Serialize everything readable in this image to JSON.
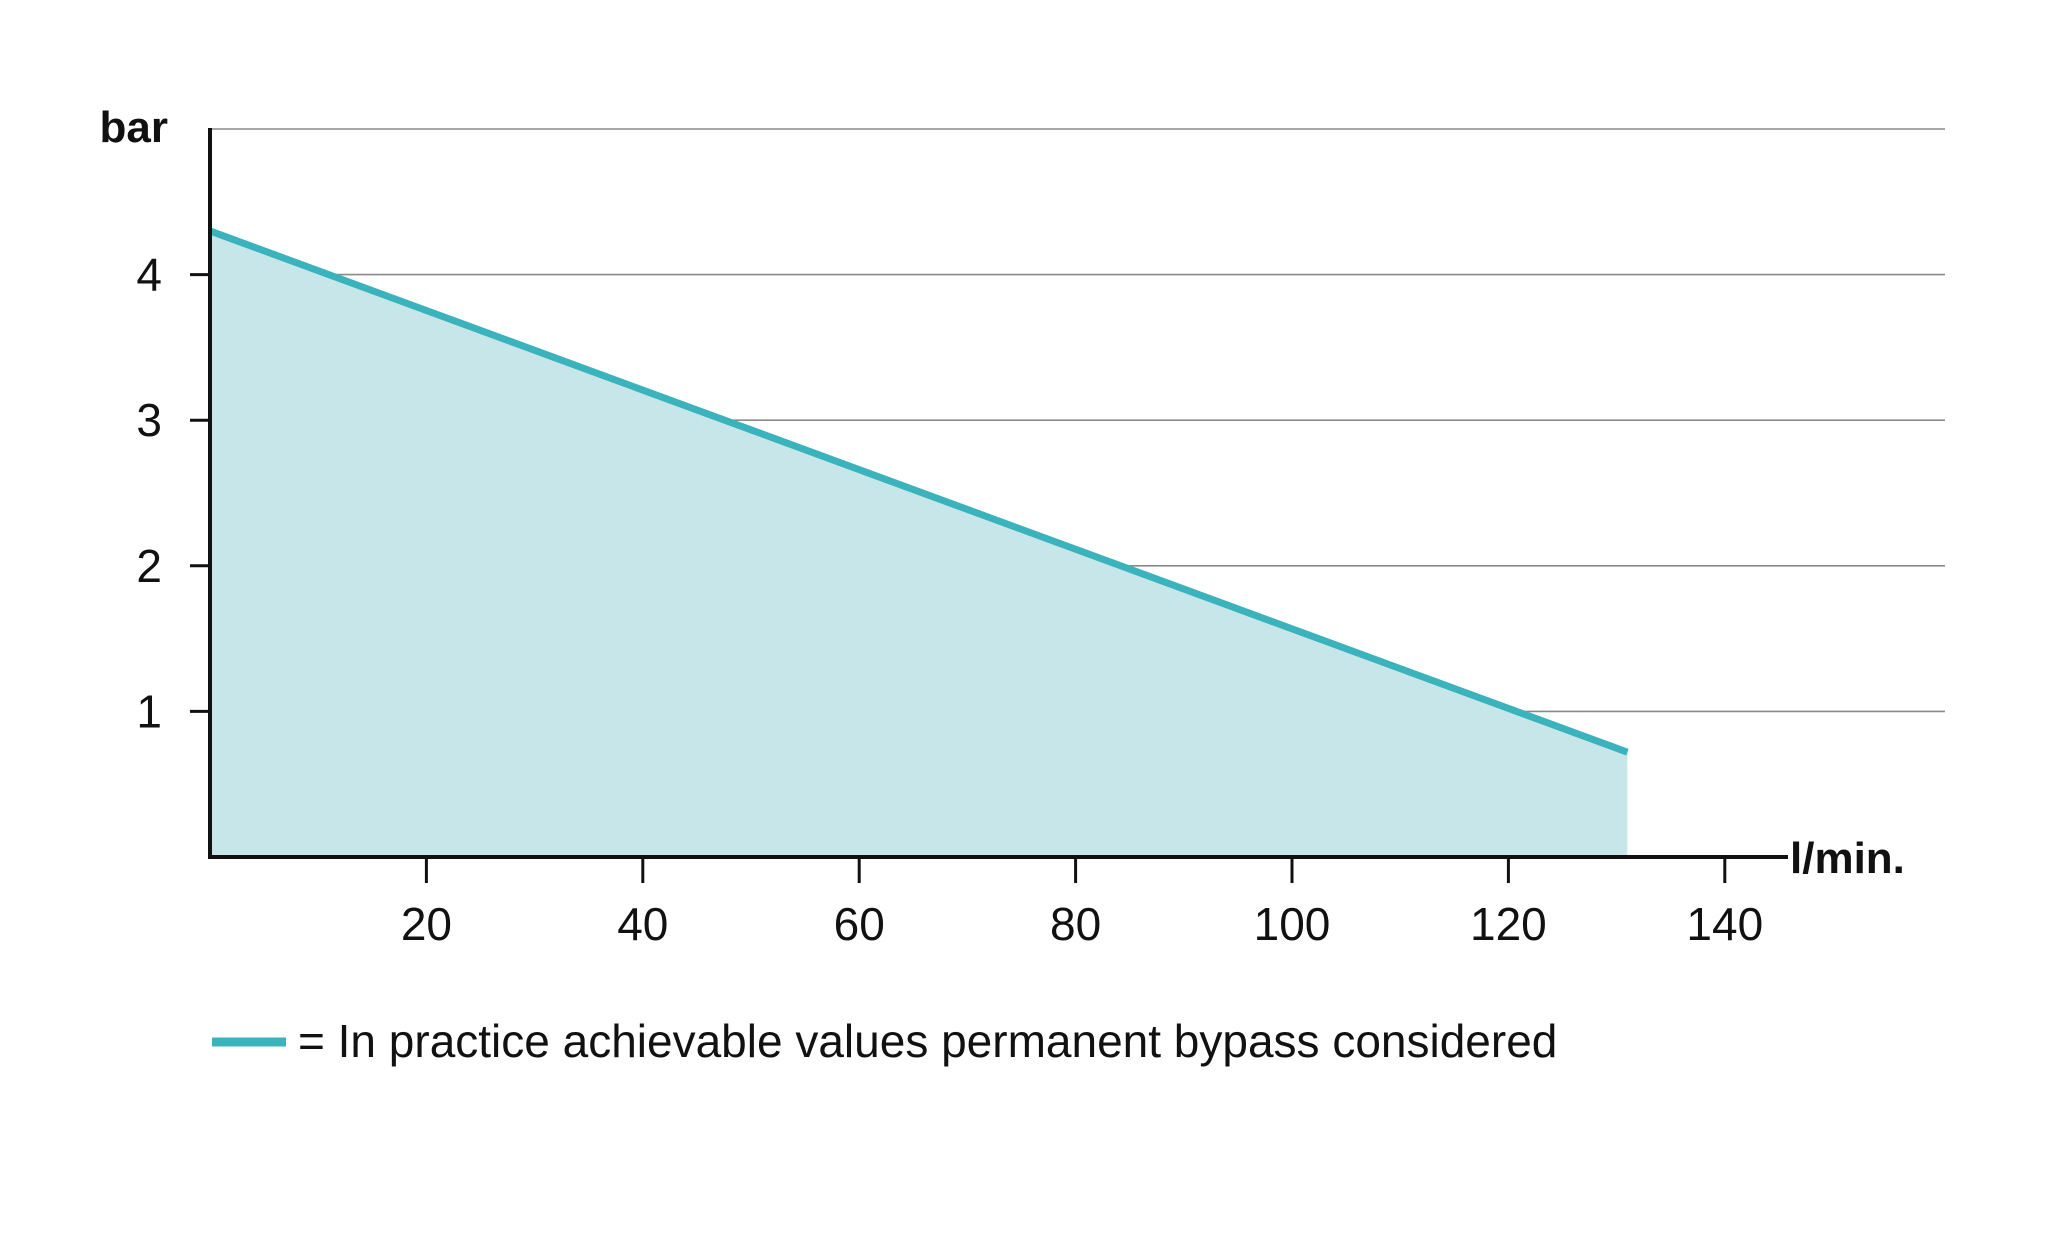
{
  "chart_data": {
    "type": "area",
    "title": "",
    "xlabel": "l/min.",
    "ylabel": "bar",
    "xlim": [
      0,
      145
    ],
    "ylim": [
      0,
      5
    ],
    "x_ticks": [
      20,
      40,
      60,
      80,
      100,
      120,
      140
    ],
    "y_ticks": [
      1,
      2,
      3,
      4
    ],
    "grid": "horizontal",
    "series": [
      {
        "x": [
          0,
          131
        ],
        "y": [
          4.3,
          0.72
        ],
        "color": "#3bb3bd",
        "fill_color": "#c7e6e9"
      }
    ],
    "legend": {
      "position": "bottom-left",
      "entries": [
        {
          "label": "= In practice achievable values permanent bypass considered",
          "color": "#3bb3bd"
        }
      ]
    }
  }
}
